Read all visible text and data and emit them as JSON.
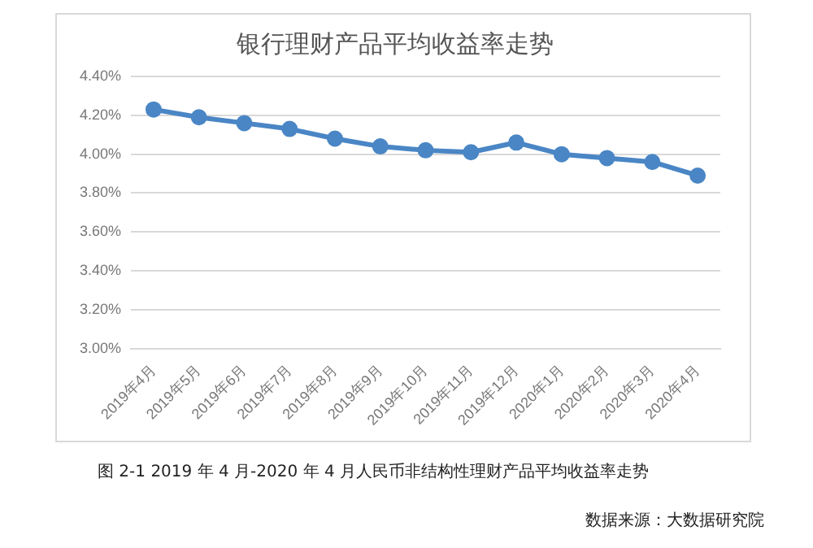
{
  "chart_data": {
    "type": "line",
    "title": "银行理财产品平均收益率走势",
    "categories": [
      "2019年4月",
      "2019年5月",
      "2019年6月",
      "2019年7月",
      "2019年8月",
      "2019年9月",
      "2019年10月",
      "2019年11月",
      "2019年12月",
      "2020年1月",
      "2020年2月",
      "2020年3月",
      "2020年4月"
    ],
    "series": [
      {
        "color": "#4a86c5",
        "values": [
          4.23,
          4.19,
          4.16,
          4.13,
          4.08,
          4.04,
          4.02,
          4.01,
          4.06,
          4.0,
          3.98,
          3.96,
          3.89
        ]
      }
    ],
    "ylim": [
      3.0,
      4.4
    ],
    "yticks": [
      {
        "value": 3.0,
        "label": "3.00%"
      },
      {
        "value": 3.2,
        "label": "3.20%"
      },
      {
        "value": 3.4,
        "label": "3.40%"
      },
      {
        "value": 3.6,
        "label": "3.60%"
      },
      {
        "value": 3.8,
        "label": "3.80%"
      },
      {
        "value": 4.0,
        "label": "4.00%"
      },
      {
        "value": 4.2,
        "label": "4.20%"
      },
      {
        "value": 4.4,
        "label": "4.40%"
      }
    ],
    "grid": "y",
    "marker": "circle",
    "line_style": "solid",
    "legend": false,
    "annotations": [
      "图 2-1 2019 年 4 月-2020 年 4 月人民币非结构性理财产品平均收益率走势",
      "数据来源：大数据研究院"
    ]
  }
}
